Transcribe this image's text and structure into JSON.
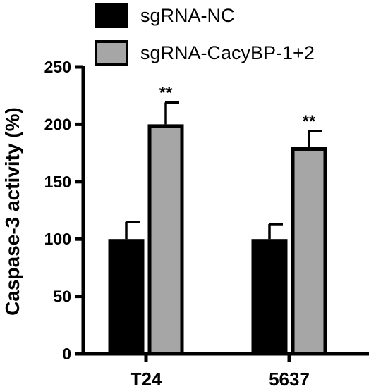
{
  "chart_data": {
    "type": "bar",
    "categories": [
      "T24",
      "5637"
    ],
    "series": [
      {
        "name": "sgRNA-NC",
        "values": [
          100,
          100
        ],
        "errors": [
          15,
          13
        ],
        "color": "#000000"
      },
      {
        "name": "sgRNA-CacyBP-1+2",
        "values": [
          200,
          180
        ],
        "errors": [
          19,
          14
        ],
        "color": "#a6a6a6"
      }
    ],
    "significance": [
      [],
      [
        "**",
        "**"
      ]
    ],
    "ylabel": "Caspase-3 activity (%)",
    "xlabel": "",
    "title": "",
    "ylim": [
      0,
      250
    ],
    "yticks": [
      "0",
      "50",
      "100",
      "150",
      "200",
      "250"
    ],
    "legend_position": "top",
    "grid": false
  }
}
